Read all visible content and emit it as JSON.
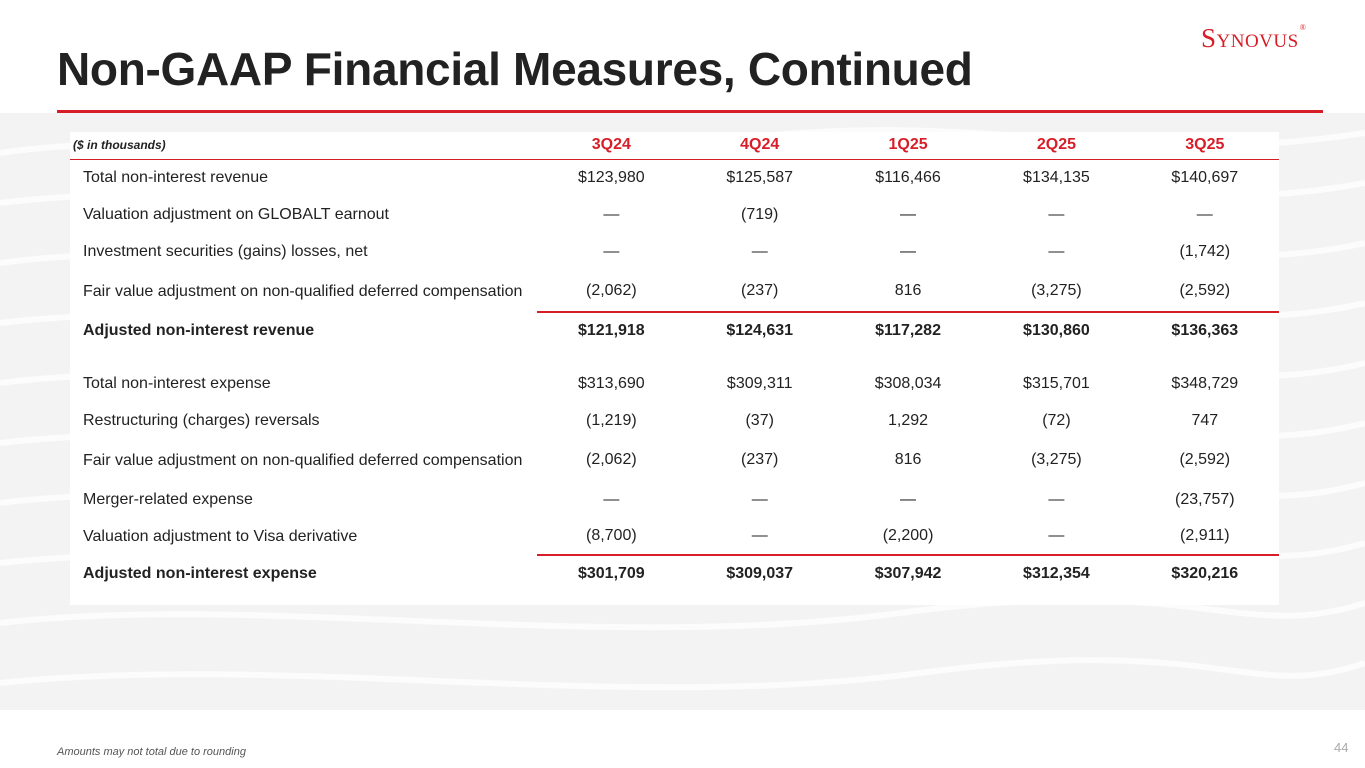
{
  "header": {
    "title": "Non-GAAP Financial Measures, Continued",
    "logo_text": "Synovus",
    "logo_reg": "®",
    "brand_color": "#d71e28"
  },
  "table": {
    "units_label": "($ in thousands)",
    "columns": [
      "3Q24",
      "4Q24",
      "1Q25",
      "2Q25",
      "3Q25"
    ],
    "revenue_rows": [
      {
        "label": "Total non-interest revenue",
        "values": [
          "$123,980",
          "$125,587",
          "$116,466",
          "$134,135",
          "$140,697"
        ]
      },
      {
        "label": "Valuation adjustment on GLOBALT earnout",
        "values": [
          "—",
          "(719)",
          "—",
          "—",
          "—"
        ]
      },
      {
        "label": "Investment securities (gains) losses, net",
        "values": [
          "—",
          "—",
          "—",
          "—",
          "(1,742)"
        ]
      },
      {
        "label": "Fair value adjustment on non-qualified deferred compensation",
        "values": [
          "(2,062)",
          "(237)",
          "816",
          "(3,275)",
          "(2,592)"
        ]
      }
    ],
    "revenue_subtotal": {
      "label": "Adjusted non-interest revenue",
      "values": [
        "$121,918",
        "$124,631",
        "$117,282",
        "$130,860",
        "$136,363"
      ]
    },
    "expense_rows": [
      {
        "label": "Total non-interest expense",
        "values": [
          "$313,690",
          "$309,311",
          "$308,034",
          "$315,701",
          "$348,729"
        ]
      },
      {
        "label": "Restructuring (charges) reversals",
        "values": [
          "(1,219)",
          "(37)",
          "1,292",
          "(72)",
          "747"
        ]
      },
      {
        "label": "Fair value adjustment on non-qualified deferred compensation",
        "values": [
          "(2,062)",
          "(237)",
          "816",
          "(3,275)",
          "(2,592)"
        ]
      },
      {
        "label": "Merger-related expense",
        "values": [
          "—",
          "—",
          "—",
          "—",
          "(23,757)"
        ]
      },
      {
        "label": "Valuation adjustment to Visa derivative",
        "values": [
          "(8,700)",
          "—",
          "(2,200)",
          "—",
          "(2,911)"
        ]
      }
    ],
    "expense_subtotal": {
      "label": "Adjusted non-interest expense",
      "values": [
        "$301,709",
        "$309,037",
        "$307,942",
        "$312,354",
        "$320,216"
      ]
    }
  },
  "footer": {
    "note": "Amounts may not total due to rounding",
    "page_number": "44"
  }
}
